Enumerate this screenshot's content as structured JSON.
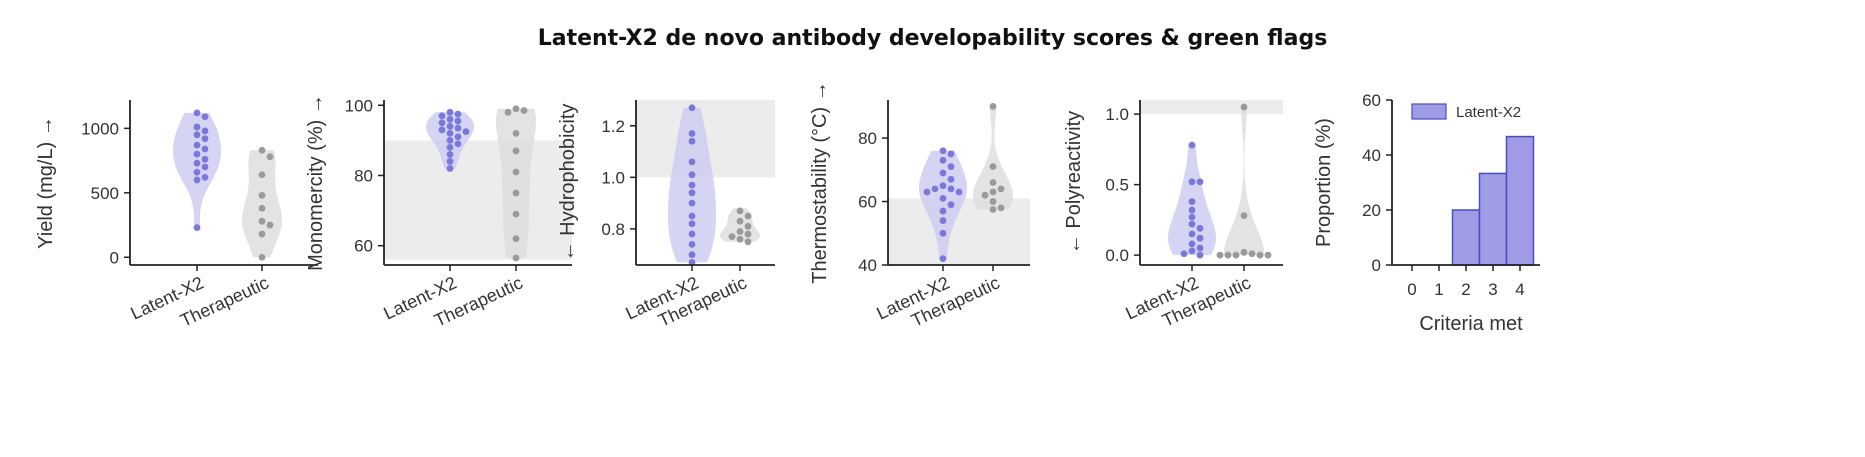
{
  "title": "Latent-X2 de novo antibody developability scores & green flags",
  "colors": {
    "latent": "#7b78dc",
    "latent_fill": "#cfcdf1",
    "therapeutic": "#9a9a9a",
    "therapeutic_fill": "#dedede",
    "flag_region": "#ececec",
    "bar_fill": "#9f9ce6",
    "bar_edge": "#4f4bc4"
  },
  "chart_data": [
    {
      "type": "violin",
      "ylabel": "Yield (mg/L) →",
      "ylim": [
        -60,
        1220
      ],
      "yticks": [
        0,
        500,
        1000
      ],
      "categories": [
        "Latent-X2",
        "Therapeutic"
      ],
      "series": [
        {
          "name": "Latent-X2",
          "range": [
            230,
            1120
          ],
          "points": [
            1120,
            1090,
            1010,
            980,
            950,
            920,
            870,
            840,
            800,
            760,
            730,
            700,
            660,
            620,
            600,
            230
          ]
        },
        {
          "name": "Therapeutic",
          "range": [
            0,
            830
          ],
          "points": [
            830,
            780,
            640,
            480,
            380,
            280,
            250,
            180,
            0
          ]
        }
      ],
      "highlight": null
    },
    {
      "type": "violin",
      "ylabel": "Monomercity (%) →",
      "ylim": [
        54.5,
        101.5
      ],
      "yticks": [
        60,
        80,
        100
      ],
      "categories": [
        "Latent-X2",
        "Therapeutic"
      ],
      "series": [
        {
          "name": "Latent-X2",
          "range": [
            82,
            98
          ],
          "points": [
            98,
            97.5,
            97,
            96,
            95.5,
            95,
            94,
            93.5,
            93,
            92.5,
            92,
            91,
            90,
            89,
            88,
            86,
            84,
            82
          ]
        },
        {
          "name": "Therapeutic",
          "range": [
            56.5,
            99
          ],
          "points": [
            99,
            98.5,
            98,
            92,
            87,
            81,
            75,
            69,
            62,
            56.5
          ]
        }
      ],
      "highlight": [
        56,
        90
      ]
    },
    {
      "type": "violin",
      "ylabel": "← Hydrophobicity",
      "ylim": [
        0.66,
        1.3
      ],
      "yticks": [
        0.8,
        1.0,
        1.2
      ],
      "categories": [
        "Latent-X2",
        "Therapeutic"
      ],
      "series": [
        {
          "name": "Latent-X2",
          "range": [
            0.67,
            1.27
          ],
          "points": [
            1.27,
            1.17,
            1.14,
            1.06,
            1.01,
            0.97,
            0.94,
            0.9,
            0.85,
            0.82,
            0.78,
            0.74,
            0.7,
            0.67
          ]
        },
        {
          "name": "Therapeutic",
          "range": [
            0.75,
            0.88
          ],
          "points": [
            0.87,
            0.85,
            0.83,
            0.81,
            0.79,
            0.78,
            0.77,
            0.76,
            0.75
          ]
        }
      ],
      "highlight": [
        1.0,
        1.3
      ]
    },
    {
      "type": "violin",
      "ylabel": "Thermostability (°C) →",
      "ylim": [
        40,
        92
      ],
      "yticks": [
        40,
        60,
        80
      ],
      "categories": [
        "Latent-X2",
        "Therapeutic"
      ],
      "series": [
        {
          "name": "Latent-X2",
          "range": [
            42,
            76
          ],
          "points": [
            76,
            75,
            73,
            71,
            69,
            67,
            65,
            64,
            64,
            63,
            63,
            61,
            59,
            57,
            54,
            50,
            42
          ]
        },
        {
          "name": "Therapeutic",
          "range": [
            57.5,
            90
          ],
          "points": [
            90,
            71,
            66,
            64,
            63,
            62,
            60,
            58,
            57.5
          ]
        }
      ],
      "highlight": [
        40,
        61
      ]
    },
    {
      "type": "violin",
      "ylabel": "← Polyreactivity",
      "ylim": [
        -0.07,
        1.1
      ],
      "yticks": [
        0.0,
        0.5,
        1.0
      ],
      "categories": [
        "Latent-X2",
        "Therapeutic"
      ],
      "series": [
        {
          "name": "Latent-X2",
          "range": [
            0.0,
            0.78
          ],
          "points": [
            0.78,
            0.52,
            0.52,
            0.38,
            0.32,
            0.27,
            0.22,
            0.19,
            0.15,
            0.12,
            0.08,
            0.05,
            0.03,
            0.01,
            0.0
          ]
        },
        {
          "name": "Therapeutic",
          "range": [
            0.0,
            1.05
          ],
          "points": [
            1.05,
            0.28,
            0.02,
            0.01,
            0.0,
            0.0,
            0.0,
            0.0,
            0.0
          ]
        }
      ],
      "highlight": [
        1.0,
        1.1
      ]
    },
    {
      "type": "bar",
      "xlabel": "Criteria met",
      "ylabel": "Proportion (%)",
      "ylim": [
        0,
        60
      ],
      "yticks": [
        0,
        20,
        40,
        60
      ],
      "categories": [
        "0",
        "1",
        "2",
        "3",
        "4"
      ],
      "values": [
        0,
        0,
        20,
        33.3,
        46.7
      ],
      "legend": [
        "Latent-X2"
      ]
    }
  ]
}
